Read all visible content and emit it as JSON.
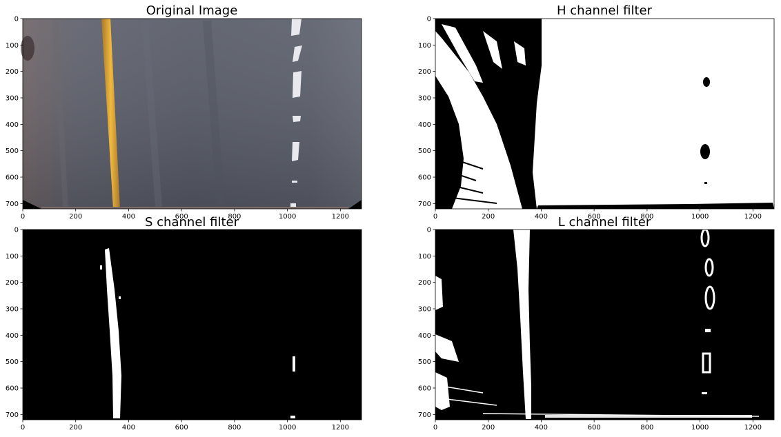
{
  "panels": [
    {
      "id": "original",
      "title": "Original Image"
    },
    {
      "id": "h",
      "title": "H channel filter"
    },
    {
      "id": "s",
      "title": "S channel filter"
    },
    {
      "id": "l",
      "title": "L channel filter"
    }
  ],
  "axes": {
    "x_ticks": [
      "0",
      "200",
      "400",
      "600",
      "800",
      "1000",
      "1200"
    ],
    "y_ticks": [
      "0",
      "100",
      "200",
      "300",
      "400",
      "500",
      "600",
      "700"
    ]
  },
  "colors": {
    "road": "#5b5f6b",
    "yellow_line": "#d8a23a",
    "mask_on": "#ffffff",
    "mask_off": "#000000"
  }
}
